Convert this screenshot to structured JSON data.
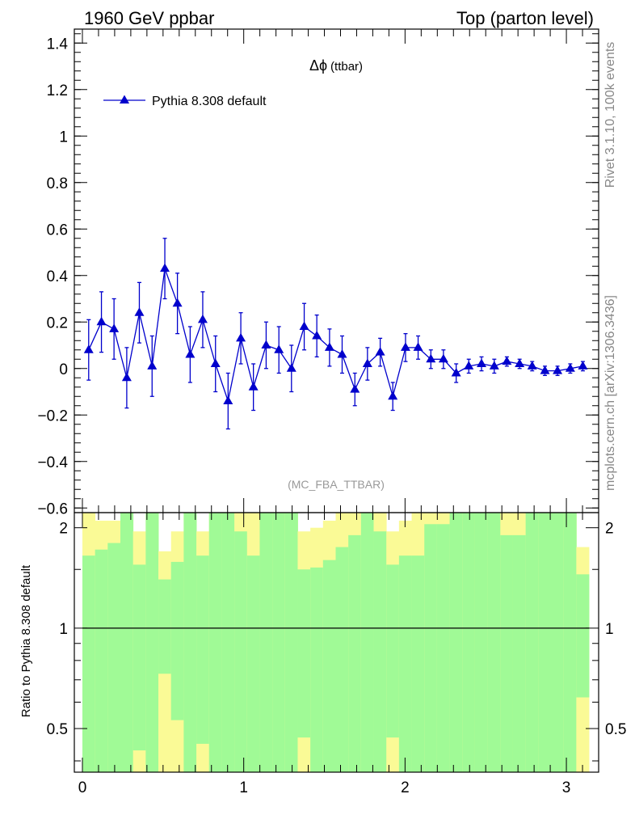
{
  "header": {
    "left": "1960 GeV ppbar",
    "right": "Top (parton level)"
  },
  "side_text": {
    "top": "Rivet 3.1.10,  100k events",
    "bottom": "mcplots.cern.ch [arXiv:1306.3436]"
  },
  "colors": {
    "series": "#0000cc",
    "band_inner": "#a0fa96",
    "band_outer": "#fafa96",
    "axis": "#000000",
    "watermark": "#999999",
    "side_text": "#888888"
  },
  "chart_data": [
    {
      "type": "line",
      "title": "Δϕ",
      "title_suffix": "(ttbar)",
      "watermark": "(MC_FBA_TTBAR)",
      "legend_position": "top-left",
      "xlim": [
        -0.05,
        3.2
      ],
      "ylim": [
        -0.62,
        1.46
      ],
      "y_ticks": [
        -0.6,
        -0.4,
        -0.2,
        0,
        0.2,
        0.4,
        0.6,
        0.8,
        1,
        1.2,
        1.4
      ],
      "y_tick_labels": [
        "−0.6",
        "−0.4",
        "−0.2",
        "0",
        "0.2",
        "0.4",
        "0.6",
        "0.8",
        "1",
        "1.2",
        "1.4"
      ],
      "series": [
        {
          "name": "Pythia 8.308 default",
          "marker": "triangle-up",
          "x": [
            0.039,
            0.118,
            0.196,
            0.275,
            0.353,
            0.432,
            0.511,
            0.589,
            0.668,
            0.746,
            0.825,
            0.903,
            0.982,
            1.06,
            1.139,
            1.218,
            1.296,
            1.375,
            1.453,
            1.532,
            1.61,
            1.689,
            1.767,
            1.846,
            1.924,
            2.003,
            2.081,
            2.16,
            2.238,
            2.317,
            2.395,
            2.474,
            2.553,
            2.631,
            2.71,
            2.788,
            2.867,
            2.945,
            3.024,
            3.102
          ],
          "y": [
            0.08,
            0.2,
            0.17,
            -0.04,
            0.24,
            0.01,
            0.43,
            0.28,
            0.06,
            0.21,
            0.02,
            -0.14,
            0.13,
            -0.08,
            0.1,
            0.08,
            0.0,
            0.18,
            0.14,
            0.09,
            0.06,
            -0.09,
            0.02,
            0.07,
            -0.12,
            0.09,
            0.09,
            0.04,
            0.04,
            -0.02,
            0.01,
            0.02,
            0.01,
            0.03,
            0.02,
            0.01,
            -0.01,
            -0.01,
            0.0,
            0.01
          ],
          "yerr": [
            0.13,
            0.13,
            0.13,
            0.13,
            0.13,
            0.13,
            0.13,
            0.13,
            0.12,
            0.12,
            0.12,
            0.12,
            0.11,
            0.1,
            0.1,
            0.1,
            0.1,
            0.1,
            0.09,
            0.08,
            0.08,
            0.07,
            0.07,
            0.06,
            0.06,
            0.06,
            0.05,
            0.04,
            0.04,
            0.04,
            0.03,
            0.03,
            0.03,
            0.02,
            0.02,
            0.02,
            0.02,
            0.02,
            0.02,
            0.02
          ]
        }
      ]
    },
    {
      "type": "area",
      "ylabel": "Ratio to Pythia 8.308 default",
      "xlim": [
        -0.05,
        3.2
      ],
      "ylim": [
        0.37,
        2.22
      ],
      "y_scale": "log",
      "reference_line": 1,
      "x_ticks": [
        0,
        1,
        2,
        3
      ],
      "x_tick_labels": [
        "0",
        "1",
        "2",
        "3"
      ],
      "y_ticks": [
        0.5,
        1,
        2
      ],
      "y_tick_labels": [
        "0.5",
        "1",
        "2"
      ],
      "bin_edges": [
        0,
        0.0785,
        0.157,
        0.2355,
        0.314,
        0.3925,
        0.471,
        0.5495,
        0.628,
        0.7065,
        0.785,
        0.8635,
        0.942,
        1.0205,
        1.099,
        1.1775,
        1.256,
        1.3345,
        1.413,
        1.4915,
        1.57,
        1.6485,
        1.727,
        1.8055,
        1.884,
        1.9625,
        2.041,
        2.1195,
        2.198,
        2.2765,
        2.355,
        2.4335,
        2.512,
        2.5905,
        2.669,
        2.7475,
        2.826,
        2.9045,
        2.983,
        3.0615,
        3.14
      ],
      "green_upper": [
        1.65,
        1.72,
        1.8,
        2.22,
        1.55,
        2.22,
        1.4,
        1.58,
        2.22,
        1.65,
        2.22,
        2.22,
        1.95,
        1.65,
        2.22,
        2.22,
        2.22,
        1.5,
        1.52,
        1.6,
        1.75,
        1.9,
        2.22,
        1.95,
        1.55,
        1.65,
        1.65,
        2.05,
        2.05,
        2.22,
        2.22,
        2.22,
        2.22,
        1.9,
        1.9,
        2.22,
        2.22,
        2.22,
        2.22,
        1.45
      ],
      "yellow_upper": [
        2.22,
        2.22,
        2.22,
        2.22,
        2.22,
        2.22,
        2.22,
        2.22,
        2.22,
        2.22,
        2.22,
        2.22,
        2.22,
        2.22,
        2.22,
        2.22,
        2.22,
        2.22,
        2.22,
        2.22,
        2.22,
        2.22,
        2.22,
        2.22,
        2.22,
        2.22,
        2.22,
        2.22,
        2.22,
        2.22,
        2.22,
        2.22,
        2.22,
        2.22,
        2.22,
        2.22,
        2.22,
        2.22,
        2.22,
        2.22
      ],
      "outer_upper": [
        2.22,
        2.1,
        2.1,
        2.22,
        1.95,
        2.22,
        1.7,
        1.95,
        2.22,
        1.95,
        2.22,
        2.22,
        2.22,
        2.22,
        2.22,
        2.22,
        2.22,
        1.95,
        2.0,
        2.1,
        2.22,
        2.22,
        2.22,
        2.22,
        1.95,
        2.1,
        2.22,
        2.22,
        2.22,
        2.22,
        2.22,
        2.22,
        2.22,
        2.22,
        2.22,
        2.22,
        2.22,
        2.22,
        2.22,
        1.75
      ],
      "green_lower": [
        0.37,
        0.37,
        0.37,
        0.37,
        0.43,
        0.37,
        0.73,
        0.53,
        0.37,
        0.45,
        0.37,
        0.37,
        0.37,
        0.37,
        0.37,
        0.37,
        0.37,
        0.47,
        0.37,
        0.37,
        0.37,
        0.37,
        0.37,
        0.37,
        0.47,
        0.37,
        0.37,
        0.37,
        0.37,
        0.37,
        0.37,
        0.37,
        0.37,
        0.37,
        0.37,
        0.37,
        0.37,
        0.37,
        0.37,
        0.62
      ],
      "yellow_lower": [
        0.37,
        0.37,
        0.37,
        0.37,
        0.37,
        0.37,
        0.37,
        0.37,
        0.37,
        0.37,
        0.37,
        0.37,
        0.37,
        0.37,
        0.37,
        0.37,
        0.37,
        0.37,
        0.37,
        0.37,
        0.37,
        0.37,
        0.37,
        0.37,
        0.37,
        0.37,
        0.37,
        0.37,
        0.37,
        0.37,
        0.37,
        0.37,
        0.37,
        0.37,
        0.37,
        0.37,
        0.37,
        0.37,
        0.37,
        0.37
      ]
    }
  ]
}
